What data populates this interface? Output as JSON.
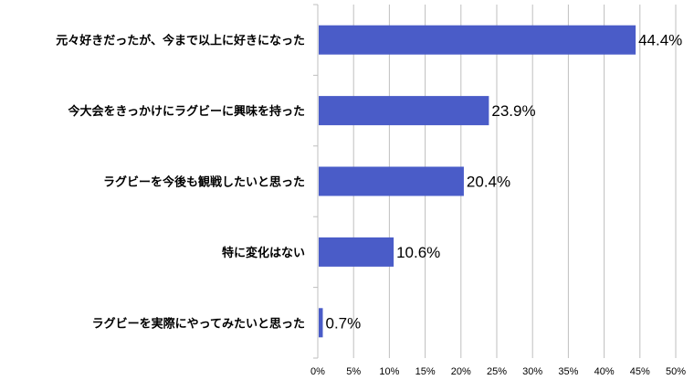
{
  "chart_data": {
    "type": "bar",
    "orientation": "horizontal",
    "categories": [
      "元々好きだったが、今まで以上に好きになった",
      "今大会をきっかけにラグビーに興味を持った",
      "ラグビーを今後も観戦したいと思った",
      "特に変化はない",
      "ラグビーを実際にやってみたいと思った"
    ],
    "values": [
      44.4,
      23.9,
      20.4,
      10.6,
      0.7
    ],
    "value_labels": [
      "44.4%",
      "23.9%",
      "20.4%",
      "10.6%",
      "0.7%"
    ],
    "xticks": [
      "0%",
      "5%",
      "10%",
      "15%",
      "20%",
      "25%",
      "30%",
      "35%",
      "40%",
      "45%",
      "50%"
    ],
    "xlim": [
      0,
      50
    ],
    "grid": true,
    "bar_color": "#4A5CC8",
    "grid_color": "#BFBFBF"
  }
}
